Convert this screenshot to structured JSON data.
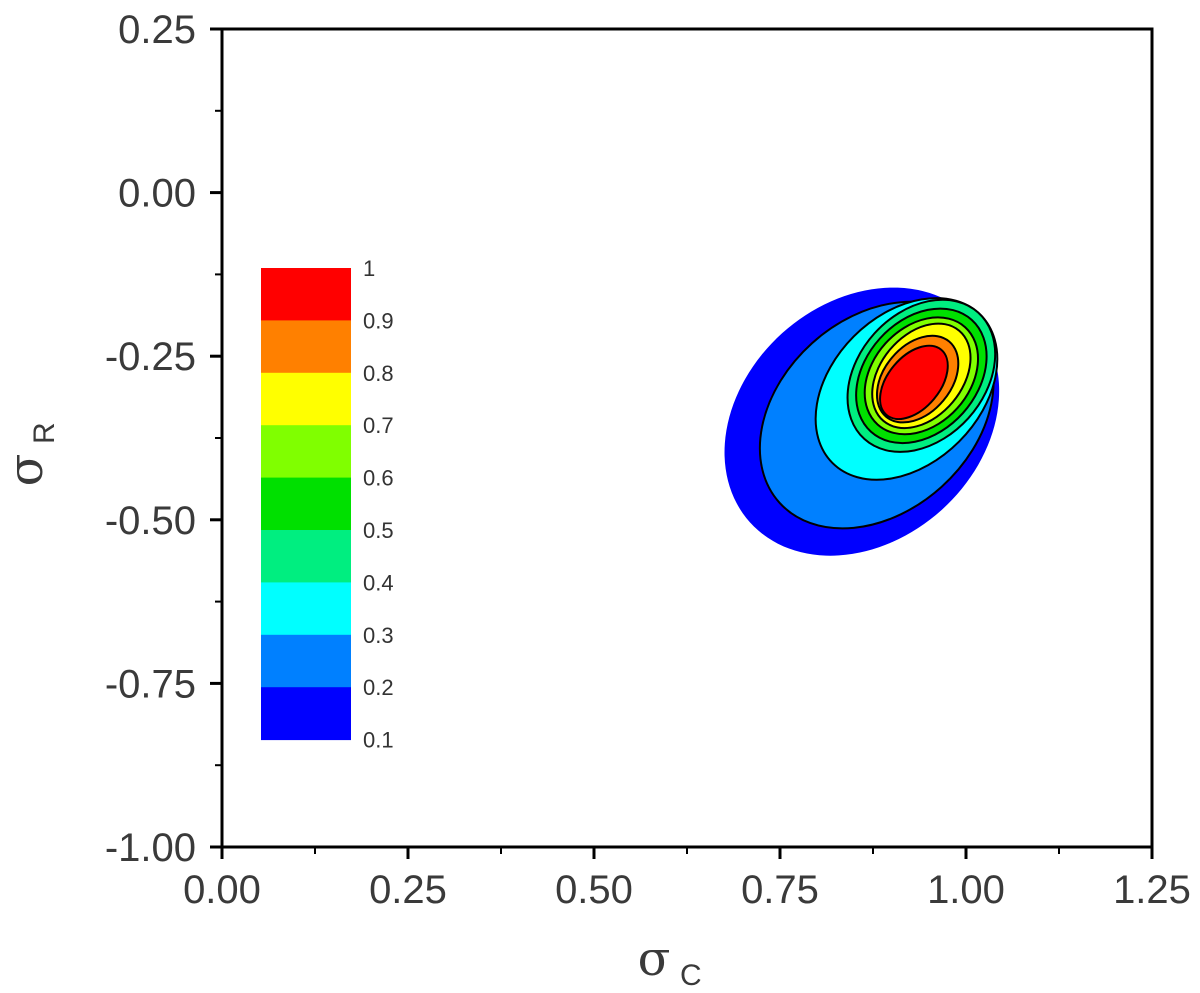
{
  "chart_data": {
    "type": "contour",
    "xlabel": "σ",
    "xlabel_sub": "C",
    "ylabel": "σ",
    "ylabel_sub": "R",
    "xlim": [
      0.0,
      1.25
    ],
    "ylim": [
      -1.0,
      0.25
    ],
    "x_ticks": [
      "0.00",
      "0.25",
      "0.50",
      "0.75",
      "1.00",
      "1.25"
    ],
    "y_ticks": [
      "0.25",
      "0.00",
      "-0.25",
      "-0.50",
      "-0.75",
      "-1.00"
    ],
    "x_tick_values": [
      0.0,
      0.25,
      0.5,
      0.75,
      1.0,
      1.25
    ],
    "y_tick_values": [
      0.25,
      0.0,
      -0.25,
      -0.5,
      -0.75,
      -1.0
    ],
    "grid": false,
    "legend_position": "left",
    "colorbar": {
      "levels": [
        "1",
        "0.9",
        "0.8",
        "0.7",
        "0.6",
        "0.5",
        "0.4",
        "0.3",
        "0.2",
        "0.1"
      ],
      "colors": [
        "#ff0000",
        "#ff8000",
        "#ffff00",
        "#80ff00",
        "#00e000",
        "#00ee80",
        "#00ffff",
        "#0080ff",
        "#0000ff"
      ]
    },
    "contour_levels": [
      {
        "level": 0.1,
        "color": "#0000ff",
        "center": [
          0.86,
          -0.35
        ],
        "semi_axes": [
          0.16,
          0.23
        ],
        "rotation": 48
      },
      {
        "level": 0.2,
        "color": "#0080ff",
        "center": [
          0.88,
          -0.34
        ],
        "semi_axes": [
          0.13,
          0.2
        ],
        "rotation": 48
      },
      {
        "level": 0.3,
        "color": "#00ffff",
        "center": [
          0.92,
          -0.3
        ],
        "semi_axes": [
          0.1,
          0.16
        ],
        "rotation": 45
      },
      {
        "level": 0.4,
        "color": "#00ee80",
        "center": [
          0.94,
          -0.28
        ],
        "semi_axes": [
          0.085,
          0.13
        ],
        "rotation": 42
      },
      {
        "level": 0.5,
        "color": "#00e000",
        "center": [
          0.94,
          -0.28
        ],
        "semi_axes": [
          0.075,
          0.115
        ],
        "rotation": 42
      },
      {
        "level": 0.6,
        "color": "#80ff00",
        "center": [
          0.94,
          -0.28
        ],
        "semi_axes": [
          0.065,
          0.1
        ],
        "rotation": 42
      },
      {
        "level": 0.7,
        "color": "#ffff00",
        "center": [
          0.94,
          -0.28
        ],
        "semi_axes": [
          0.055,
          0.09
        ],
        "rotation": 40
      },
      {
        "level": 0.8,
        "color": "#ff8000",
        "center": [
          0.935,
          -0.285
        ],
        "semi_axes": [
          0.045,
          0.075
        ],
        "rotation": 40
      },
      {
        "level": 0.9,
        "color": "#ff0000",
        "center": [
          0.93,
          -0.29
        ],
        "semi_axes": [
          0.035,
          0.065
        ],
        "rotation": 40
      }
    ]
  }
}
